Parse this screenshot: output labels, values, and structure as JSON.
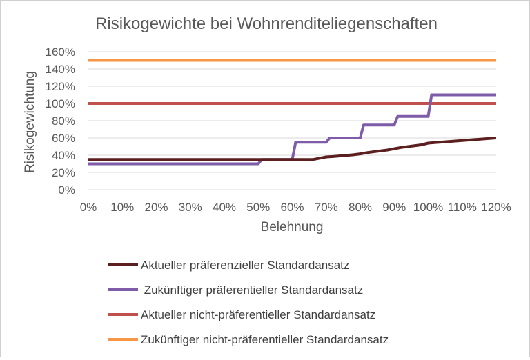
{
  "chart_data": {
    "type": "line",
    "title": "Risikogewichte bei Wohnrenditeliegenschaften",
    "xlabel": "Belehnung",
    "ylabel": "Risikogewichtung",
    "xlim": [
      0,
      120
    ],
    "ylim": [
      0,
      160
    ],
    "x_ticks": [
      "0%",
      "10%",
      "20%",
      "30%",
      "40%",
      "50%",
      "60%",
      "70%",
      "80%",
      "90%",
      "100%",
      "110%",
      "120%"
    ],
    "y_ticks": [
      "0%",
      "20%",
      "40%",
      "60%",
      "80%",
      "100%",
      "120%",
      "140%",
      "160%"
    ],
    "grid": "horizontal",
    "legend_position": "bottom",
    "series": [
      {
        "name": "Aktueller präferenzieller Standardansatz",
        "color": "#5c1f1f",
        "points": [
          [
            0,
            35
          ],
          [
            66,
            35
          ],
          [
            70,
            38
          ],
          [
            72,
            38.5
          ],
          [
            75,
            39.5
          ],
          [
            78,
            40.5
          ],
          [
            80,
            41.5
          ],
          [
            82,
            43
          ],
          [
            85,
            44.5
          ],
          [
            88,
            46
          ],
          [
            90,
            47.5
          ],
          [
            92,
            49
          ],
          [
            95,
            50.5
          ],
          [
            98,
            52
          ],
          [
            100,
            54
          ],
          [
            105,
            55.5
          ],
          [
            110,
            57
          ],
          [
            115,
            58.5
          ],
          [
            120,
            60
          ]
        ]
      },
      {
        "name": " Zukünftiger präferentieller Standardansatz",
        "color": "#7e5ca8",
        "points": [
          [
            0,
            30
          ],
          [
            50,
            30
          ],
          [
            51,
            35
          ],
          [
            60,
            35
          ],
          [
            61,
            55
          ],
          [
            70,
            55
          ],
          [
            71,
            60
          ],
          [
            80,
            60
          ],
          [
            81,
            75
          ],
          [
            90,
            75
          ],
          [
            91,
            85
          ],
          [
            100,
            85
          ],
          [
            101,
            110
          ],
          [
            120,
            110
          ]
        ]
      },
      {
        "name": "Aktueller nicht-präferentieller Standardansatz",
        "color": "#c0504d",
        "points": [
          [
            0,
            100
          ],
          [
            120,
            100
          ]
        ]
      },
      {
        "name": "Zukünftiger nicht-präferentieller Standardansatz",
        "color": "#f79646",
        "points": [
          [
            0,
            150
          ],
          [
            120,
            150
          ]
        ]
      }
    ]
  }
}
